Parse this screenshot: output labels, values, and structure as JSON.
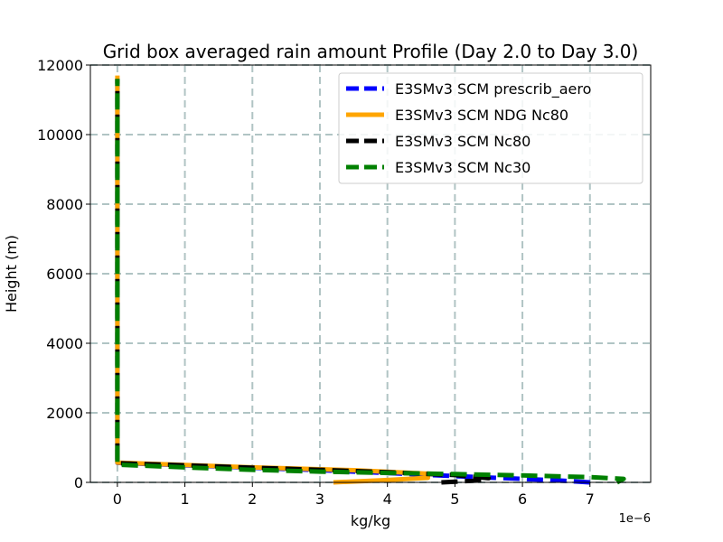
{
  "chart_data": {
    "type": "line",
    "title": "Grid box averaged rain amount Profile (Day 2.0 to Day 3.0)",
    "xlabel": "kg/kg",
    "ylabel": "Height (m)",
    "x_offset_label": "1e−6",
    "xlim": [
      -0.4,
      7.9
    ],
    "ylim": [
      0,
      12000
    ],
    "x_ticks": [
      0,
      1,
      2,
      3,
      4,
      5,
      6,
      7
    ],
    "y_ticks": [
      0,
      2000,
      4000,
      6000,
      8000,
      10000,
      12000
    ],
    "grid": true,
    "legend_position": "upper right",
    "series": [
      {
        "name": "E3SMv3 SCM prescrib_aero",
        "color": "#0000ff",
        "style": "dashed",
        "x": [
          7.0,
          6.5,
          5.0,
          4.0,
          3.0,
          2.0,
          1.0,
          0.0,
          0.0,
          0.0
        ],
        "y": [
          0,
          60,
          180,
          270,
          350,
          420,
          490,
          560,
          600,
          11600
        ]
      },
      {
        "name": "E3SMv3 SCM NDG Nc80",
        "color": "#ffa500",
        "style": "solid",
        "x": [
          3.2,
          3.9,
          4.6,
          4.6,
          3.5,
          2.0,
          1.0,
          0.0,
          0.0,
          0.0
        ],
        "y": [
          0,
          60,
          130,
          250,
          350,
          430,
          500,
          570,
          600,
          11700
        ]
      },
      {
        "name": "E3SMv3 SCM Nc80",
        "color": "#000000",
        "style": "dashed",
        "x": [
          4.8,
          5.4,
          5.5,
          5.0,
          4.0,
          3.0,
          2.0,
          1.0,
          0.0,
          0.0,
          0.0
        ],
        "y": [
          0,
          60,
          120,
          210,
          290,
          360,
          420,
          490,
          550,
          600,
          11600
        ]
      },
      {
        "name": "E3SMv3 SCM Nc30",
        "color": "#008000",
        "style": "dashed",
        "x": [
          7.4,
          7.5,
          7.0,
          6.0,
          5.0,
          4.0,
          3.0,
          2.0,
          1.0,
          0.0,
          0.0,
          0.0
        ],
        "y": [
          0,
          100,
          150,
          200,
          240,
          270,
          310,
          360,
          430,
          510,
          560,
          11600
        ]
      }
    ]
  }
}
